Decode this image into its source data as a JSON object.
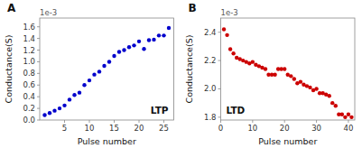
{
  "chart_data": [
    {
      "type": "scatter",
      "title": "A",
      "x_label": "Pulse number",
      "y_label": "Conductance(S)",
      "annotations": [
        "1e-3",
        "LTP"
      ],
      "color": "#0000cc",
      "grid": false,
      "x": [
        1,
        2,
        3,
        4,
        5,
        6,
        7,
        8,
        9,
        10,
        11,
        12,
        13,
        14,
        15,
        16,
        17,
        18,
        19,
        20,
        21,
        22,
        23,
        24,
        25,
        26
      ],
      "values": [
        0.085,
        0.12,
        0.16,
        0.2,
        0.25,
        0.35,
        0.43,
        0.47,
        0.6,
        0.68,
        0.78,
        0.83,
        0.93,
        1.0,
        1.1,
        1.17,
        1.2,
        1.25,
        1.28,
        1.35,
        1.22,
        1.37,
        1.38,
        1.45,
        1.45,
        1.58
      ],
      "xlim": [
        0,
        27
      ],
      "ylim": [
        0.0,
        1.75
      ],
      "xticks": [
        5,
        10,
        15,
        20,
        25
      ],
      "yticks": [
        {
          "value": 0.0,
          "label": "0.0"
        },
        0.2,
        0.4,
        0.6,
        0.8,
        {
          "value": 1.0,
          "label": "1.0"
        },
        1.2,
        1.4,
        1.6
      ]
    },
    {
      "type": "scatter",
      "title": "B",
      "x_label": "Pulse number",
      "y_label": "Conductance(S)",
      "annotations": [
        "1e-3",
        "LTD"
      ],
      "color": "#cc0000",
      "grid": false,
      "x": [
        1,
        2,
        3,
        4,
        5,
        6,
        7,
        8,
        9,
        10,
        11,
        12,
        13,
        14,
        15,
        16,
        17,
        18,
        19,
        20,
        21,
        22,
        23,
        24,
        25,
        26,
        27,
        28,
        29,
        30,
        31,
        32,
        33,
        34,
        35,
        36,
        37,
        38,
        39,
        40,
        41
      ],
      "values": [
        2.42,
        2.38,
        2.28,
        2.25,
        2.22,
        2.21,
        2.2,
        2.19,
        2.18,
        2.19,
        2.17,
        2.16,
        2.15,
        2.14,
        2.1,
        2.1,
        2.1,
        2.14,
        2.14,
        2.14,
        2.1,
        2.09,
        2.07,
        2.04,
        2.05,
        2.03,
        2.02,
        2.01,
        1.99,
        2.0,
        1.97,
        1.97,
        1.96,
        1.95,
        1.9,
        1.88,
        1.82,
        1.82,
        1.8,
        1.82,
        1.8
      ],
      "xlim": [
        0,
        42
      ],
      "ylim": [
        1.78,
        2.5
      ],
      "xticks": [
        0,
        10,
        20,
        30,
        40
      ],
      "yticks": [
        1.8,
        {
          "value": 2.0,
          "label": "2.0"
        },
        2.2,
        2.4
      ]
    }
  ]
}
